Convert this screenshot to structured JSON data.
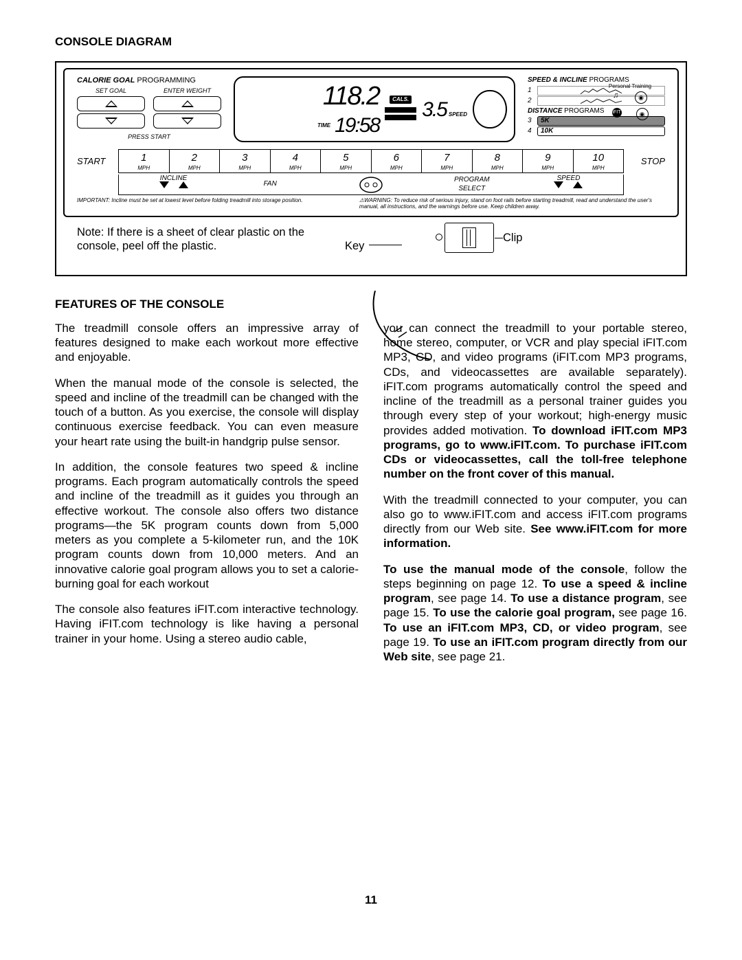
{
  "headings": {
    "diagram": "CONSOLE DIAGRAM",
    "features": "FEATURES OF THE CONSOLE"
  },
  "console": {
    "calorieGoal": {
      "title_bold": "CALORIE GOAL",
      "title_rest": " PROGRAMMING",
      "setGoal": "SET GOAL",
      "enterWeight": "ENTER WEIGHT",
      "pressStart": "PRESS START"
    },
    "lcd": {
      "cals_value": "118.2",
      "cals_label": "CALS.",
      "time_label": "TIME",
      "time_value": "19:58",
      "speed_value": "3.5",
      "speed_label": "SPEED"
    },
    "programs": {
      "speedIncline_bold": "SPEED & INCLINE",
      "speedIncline_rest": " PROGRAMS",
      "distance_bold": "DISTANCE",
      "distance_rest": " PROGRAMS",
      "rows": [
        "1",
        "2",
        "3",
        "4"
      ],
      "fiveK": "5K",
      "tenK": "10K",
      "personalTraining": "Personal Training"
    },
    "mph": {
      "unit": "MPH",
      "nums": [
        "1",
        "2",
        "3",
        "4",
        "5",
        "6",
        "7",
        "8",
        "9",
        "10"
      ]
    },
    "start": "START",
    "stop": "STOP",
    "incline": "INCLINE",
    "speed": "SPEED",
    "fan": "FAN",
    "programSelect": "PROGRAM\nSELECT",
    "finePrint": {
      "left": "IMPORTANT: Incline must be set at lowest level before folding treadmill into storage position.",
      "right": "⚠WARNING: To reduce risk of serious injury, stand on foot rails before starting treadmill, read and understand the user's manual, all instructions, and the warnings before use. Keep children away."
    }
  },
  "annotations": {
    "note": "Note: If there is a sheet of clear plastic on the console, peel off the plastic.",
    "key": "Key",
    "clip": "Clip"
  },
  "body": {
    "p1": "The treadmill console offers an impressive array of features designed to make each workout more effective and enjoyable.",
    "p2": "When the manual mode of the console is selected, the speed and incline of the treadmill can be changed with the touch of a button. As you exercise, the console will display continuous exercise feedback. You can even measure your heart rate using the built-in handgrip pulse sensor.",
    "p3": "In addition, the console features two speed & incline programs. Each program automatically controls the speed and incline of the treadmill as it guides you through an effective workout. The console also offers two distance programs—the 5K program counts down from 5,000 meters as you complete a 5-kilometer run, and the 10K program counts down from 10,000 meters. And an innovative calorie goal program allows you to set a calorie-burning goal for each workout",
    "p4": "The console also features iFIT.com interactive technology. Having iFIT.com technology is like having a personal trainer in your home. Using a stereo audio cable,",
    "p5a": "you can connect the treadmill to your portable stereo, home stereo, computer, or VCR and play special iFIT.com MP3, CD, and video programs (iFIT.com MP3 programs, CDs, and videocassettes are available separately). iFIT.com programs automatically control the speed and incline of the treadmill as a personal trainer guides you through every step of your workout; high-energy music provides added motivation. ",
    "p5b": "To download iFIT.com MP3 programs, go to www.iFIT.com. To purchase iFIT.com CDs or videocassettes, call the toll-free telephone number on the front cover of this manual.",
    "p6a": "With the treadmill connected to your computer, you can also go to www.iFIT.com and access iFIT.com programs directly from our Web site. ",
    "p6b": "See www.iFIT.com for more information.",
    "p7a": "To use the manual mode of the console",
    "p7b": ", follow the steps beginning on page 12. ",
    "p7c": "To use a speed & incline program",
    "p7d": ", see page 14. ",
    "p7e": "To use a distance program",
    "p7f": ", see page 15. ",
    "p7g": "To use the calorie goal program,",
    "p7h": " see page 16. ",
    "p7i": "To use an iFIT.com MP3, CD, or video program",
    "p7j": ", see page 19. ",
    "p7k": "To use an iFIT.com program directly from our Web site",
    "p7l": ", see page 21."
  },
  "pageNumber": "11"
}
